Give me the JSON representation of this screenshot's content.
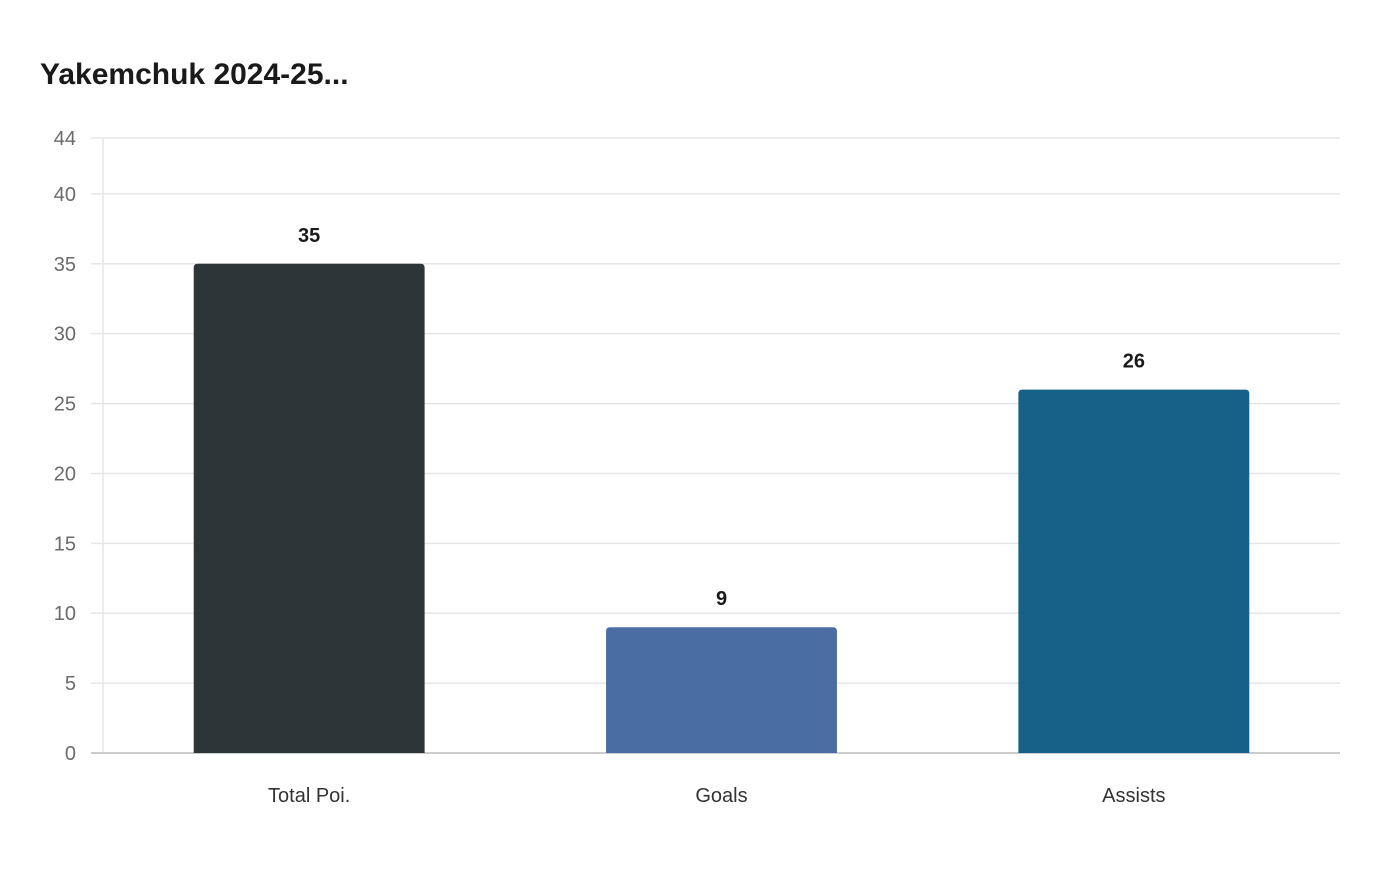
{
  "chart_data": {
    "type": "bar",
    "title": "Yakemchuk 2024-25...",
    "categories": [
      "Total Poi.",
      "Goals",
      "Assists"
    ],
    "values": [
      35,
      9,
      26
    ],
    "colors": [
      "#2e3538",
      "#4a6da3",
      "#176088"
    ],
    "yticks": [
      0,
      5,
      10,
      15,
      20,
      25,
      30,
      35,
      40,
      44
    ],
    "ylim": [
      0,
      44
    ],
    "xlabel": "",
    "ylabel": "",
    "grid": true,
    "data_labels": true,
    "legend": "none"
  },
  "style": {
    "grid_color": "#e6e6e6",
    "axis_color": "#cccccc"
  }
}
